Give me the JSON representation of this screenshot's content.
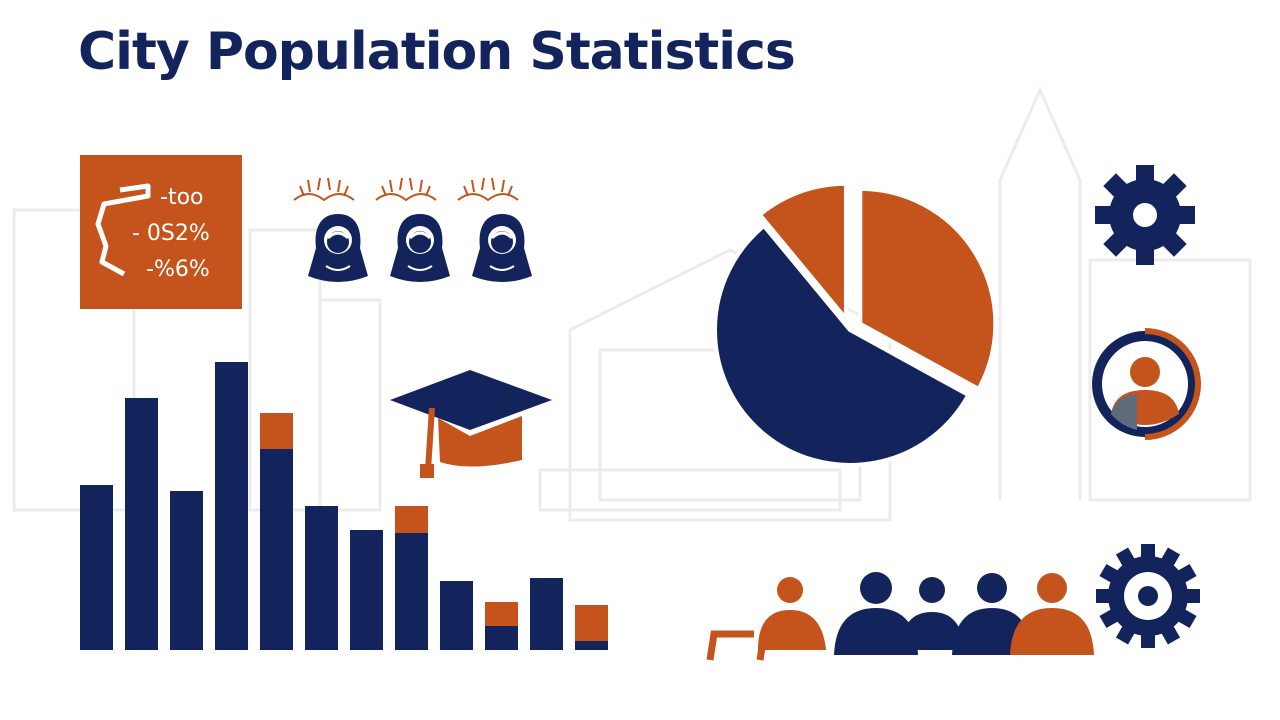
{
  "title": "City Population Statistics",
  "colors": {
    "navy": "#13245c",
    "orange": "#c4541c",
    "white": "#ffffff",
    "ghost": "#f2f2f2"
  },
  "stat_card": {
    "lines": [
      "-too",
      "- 0S2%",
      "-%6%"
    ]
  },
  "icons": [
    "laurel-icon",
    "female-person-icon",
    "graduation-cap-icon",
    "gear-icon",
    "person-ring-icon",
    "people-group-icon",
    "city-skyline-icon"
  ],
  "chart_data": [
    {
      "type": "bar",
      "stacked": true,
      "series": [
        {
          "color": "#13245c",
          "values": [
            55,
            84,
            53,
            96,
            67,
            48,
            40,
            39,
            23,
            8,
            24,
            3
          ]
        },
        {
          "color": "#c4541c",
          "values": [
            0,
            0,
            0,
            0,
            12,
            0,
            0,
            9,
            0,
            8,
            0,
            12
          ]
        }
      ],
      "ylim": [
        0,
        100
      ],
      "grid": false
    },
    {
      "type": "pie",
      "slices": [
        {
          "value": 33,
          "color": "#c4541c",
          "exploded": true
        },
        {
          "value": 56,
          "color": "#13245c",
          "exploded": false
        },
        {
          "value": 11,
          "color": "#c4541c",
          "exploded": true
        }
      ]
    }
  ]
}
